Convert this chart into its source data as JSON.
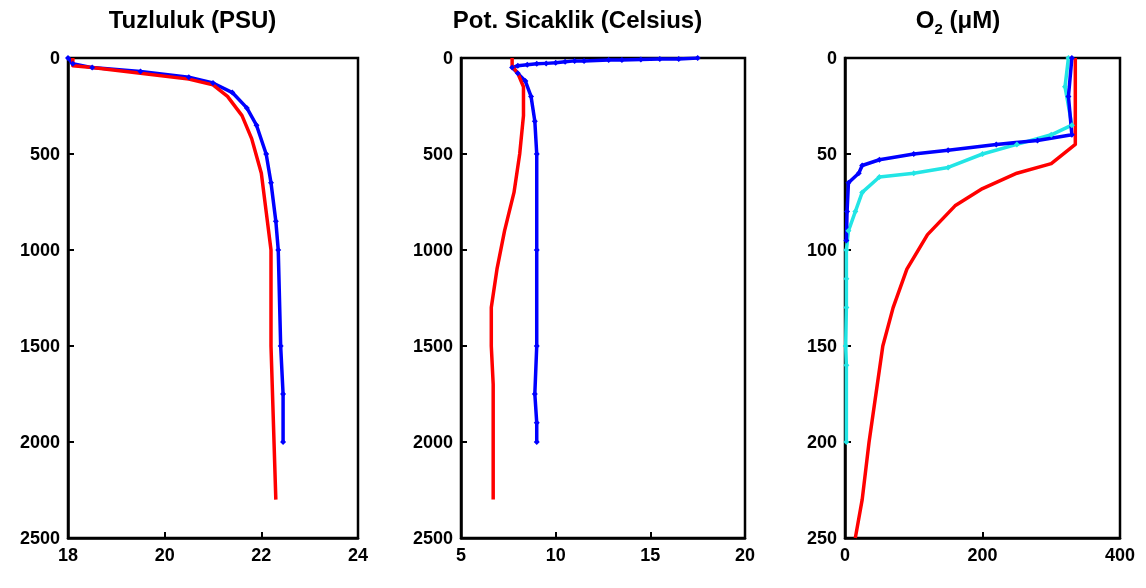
{
  "chart_data": [
    {
      "type": "line",
      "title": "Tuzluluk (PSU)",
      "xlim": [
        18,
        24
      ],
      "xticks": [
        18,
        20,
        22,
        24
      ],
      "ylim": [
        2500,
        0
      ],
      "yticks": [
        0,
        500,
        1000,
        1500,
        2000,
        2500
      ],
      "grid": false,
      "series": [
        {
          "marker": "diamond",
          "color": "#0000ff",
          "x": [
            18.0,
            18.1,
            18.5,
            19.5,
            20.5,
            21.0,
            21.4,
            21.7,
            21.9,
            22.1,
            22.2,
            22.3,
            22.35,
            22.4,
            22.45,
            22.45
          ],
          "values": [
            0,
            30,
            50,
            70,
            100,
            130,
            180,
            260,
            350,
            500,
            650,
            850,
            1000,
            1500,
            1750,
            2000
          ]
        },
        {
          "marker": "none",
          "color": "#ff0000",
          "x": [
            18.1,
            18.1,
            18.5,
            19.5,
            20.5,
            21.0,
            21.3,
            21.6,
            21.8,
            22.0,
            22.1,
            22.2,
            22.2,
            22.3
          ],
          "values": [
            0,
            40,
            50,
            80,
            110,
            140,
            200,
            300,
            420,
            600,
            800,
            1000,
            1500,
            2300
          ]
        }
      ]
    },
    {
      "type": "line",
      "title": "Pot. Sicaklik (Celsius)",
      "xlim": [
        5,
        20
      ],
      "xticks": [
        5,
        10,
        15,
        20
      ],
      "ylim": [
        2500,
        0
      ],
      "yticks": [
        0,
        500,
        1000,
        1500,
        2000,
        2500
      ],
      "grid": false,
      "series": [
        {
          "marker": "diamond",
          "color": "#0000ff",
          "x": [
            17.5,
            16.5,
            15.5,
            14.5,
            13.5,
            12.8,
            11.5,
            11,
            10.5,
            10,
            9.5,
            9,
            8.5,
            8,
            7.7,
            8,
            8.4,
            8.7,
            8.9,
            9.0,
            9.0,
            9.0,
            8.9,
            9.0,
            9.0
          ],
          "values": [
            0,
            5,
            5,
            8,
            10,
            10,
            15,
            15,
            20,
            25,
            28,
            30,
            35,
            40,
            50,
            80,
            120,
            200,
            330,
            500,
            1000,
            1500,
            1750,
            1900,
            2000
          ]
        },
        {
          "marker": "none",
          "color": "#ff0000",
          "x": [
            7.7,
            7.7,
            8.0,
            8.3,
            8.3,
            8.1,
            7.8,
            7.3,
            6.9,
            6.6,
            6.6,
            6.7,
            6.7,
            6.7
          ],
          "values": [
            0,
            40,
            80,
            150,
            300,
            500,
            700,
            900,
            1100,
            1300,
            1500,
            1700,
            2000,
            2300
          ]
        }
      ]
    },
    {
      "type": "line",
      "title": "O$_{2}$ (μM)",
      "xlim": [
        0,
        400
      ],
      "xticks": [
        0,
        200,
        400
      ],
      "ylim": [
        250,
        0
      ],
      "yticks": [
        0,
        50,
        100,
        150,
        200,
        250
      ],
      "grid": false,
      "series": [
        {
          "marker": "diamond",
          "color": "#22e5e5",
          "x": [
            325,
            320,
            330,
            300,
            250,
            200,
            150,
            100,
            50,
            25,
            15,
            5,
            2,
            2,
            2,
            1,
            2,
            2
          ],
          "values": [
            0,
            15,
            35,
            40,
            45,
            50,
            57,
            60,
            62,
            70,
            80,
            90,
            100,
            115,
            130,
            150,
            160,
            200
          ]
        },
        {
          "marker": "diamond",
          "color": "#0000ff",
          "x": [
            330,
            325,
            330,
            280,
            220,
            150,
            100,
            50,
            25,
            20,
            5,
            3,
            2
          ],
          "values": [
            0,
            20,
            40,
            43,
            45,
            48,
            50,
            53,
            56,
            60,
            65,
            80,
            95
          ]
        },
        {
          "marker": "none",
          "color": "#ff0000",
          "x": [
            335,
            335,
            300,
            250,
            200,
            160,
            120,
            90,
            70,
            55,
            45,
            35,
            25,
            15
          ],
          "values": [
            0,
            45,
            55,
            60,
            68,
            77,
            92,
            110,
            130,
            150,
            175,
            200,
            230,
            250
          ]
        }
      ]
    }
  ]
}
